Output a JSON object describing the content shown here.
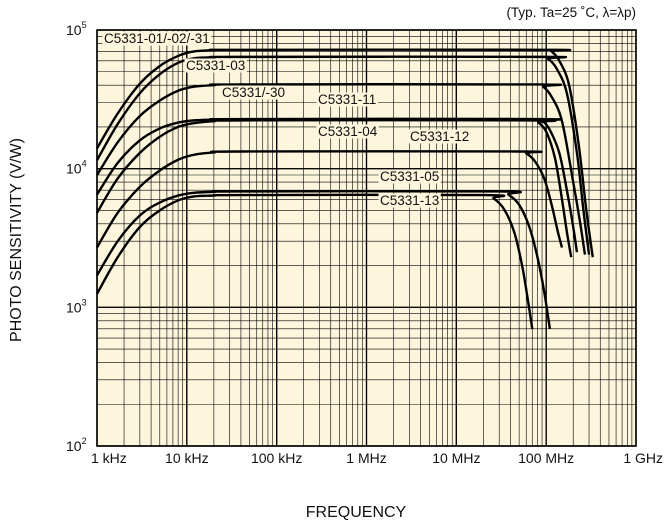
{
  "chart_data": {
    "type": "line",
    "title": "",
    "note": "(Typ. Ta=25 ˚C, λ=λp)",
    "xlabel": "FREQUENCY",
    "ylabel": "PHOTO SENSITIVITY (V/W)",
    "x_scale": "log",
    "y_scale": "log",
    "xlim_hz": [
      1000,
      1000000000
    ],
    "ylim": [
      100,
      100000
    ],
    "x_ticks": [
      {
        "value": 1000,
        "label": "1 kHz"
      },
      {
        "value": 10000,
        "label": "10 kHz"
      },
      {
        "value": 100000,
        "label": "100 kHz"
      },
      {
        "value": 1000000,
        "label": "1 MHz"
      },
      {
        "value": 10000000,
        "label": "10 MHz"
      },
      {
        "value": 100000000,
        "label": "100 MHz"
      },
      {
        "value": 1000000000,
        "label": "1 GHz"
      }
    ],
    "y_ticks": [
      {
        "value": 100,
        "base": "10",
        "exp": "2"
      },
      {
        "value": 1000,
        "base": "10",
        "exp": "3"
      },
      {
        "value": 10000,
        "base": "10",
        "exp": "4"
      },
      {
        "value": 100000,
        "base": "10",
        "exp": "5"
      }
    ],
    "grid": true,
    "legend": "labels on curves",
    "background_color": "#fdf6dd",
    "grid_color": "#000000",
    "line_color": "#000000",
    "series": [
      {
        "name": "C5331-01/-02/-31",
        "points": [
          [
            1000,
            14000
          ],
          [
            1700,
            25000
          ],
          [
            3000,
            41000
          ],
          [
            5000,
            55000
          ],
          [
            8000,
            65000
          ],
          [
            12000,
            70000
          ],
          [
            20000,
            71500
          ],
          [
            40000,
            72000
          ],
          [
            100000000,
            72000
          ],
          [
            115000000,
            70000
          ],
          [
            140000000,
            60000
          ],
          [
            180000000,
            40000
          ],
          [
            230000000,
            15000
          ],
          [
            280000000,
            5000
          ],
          [
            330000000,
            2300
          ]
        ]
      },
      {
        "name": "C5331-03",
        "points": [
          [
            1000,
            11500
          ],
          [
            1700,
            21000
          ],
          [
            3000,
            35000
          ],
          [
            5000,
            48000
          ],
          [
            8000,
            58000
          ],
          [
            12000,
            62500
          ],
          [
            20000,
            63500
          ],
          [
            40000,
            64000
          ],
          [
            90000000,
            64000
          ],
          [
            105000000,
            62000
          ],
          [
            130000000,
            53000
          ],
          [
            170000000,
            35000
          ],
          [
            220000000,
            13000
          ],
          [
            260000000,
            5000
          ],
          [
            300000000,
            2400
          ]
        ]
      },
      {
        "name": "C5331/-30",
        "points": [
          [
            1000,
            9000
          ],
          [
            1700,
            15500
          ],
          [
            3000,
            24000
          ],
          [
            5000,
            31000
          ],
          [
            8000,
            36500
          ],
          [
            12000,
            39000
          ],
          [
            20000,
            40000
          ],
          [
            40000,
            40500
          ],
          [
            80000000,
            40500
          ],
          [
            93000000,
            39000
          ],
          [
            115000000,
            33000
          ],
          [
            150000000,
            22000
          ],
          [
            200000000,
            8000
          ],
          [
            240000000,
            4000
          ],
          [
            270000000,
            2400
          ]
        ]
      },
      {
        "name": "C5331-11",
        "points": [
          [
            1000,
            6500
          ],
          [
            1700,
            11000
          ],
          [
            3000,
            16000
          ],
          [
            5000,
            19500
          ],
          [
            8000,
            21500
          ],
          [
            12000,
            22300
          ],
          [
            20000,
            22600
          ],
          [
            40000,
            22800
          ],
          [
            80000000,
            22800
          ],
          [
            92000000,
            22000
          ],
          [
            110000000,
            19000
          ],
          [
            140000000,
            13000
          ],
          [
            170000000,
            7000
          ],
          [
            200000000,
            3800
          ],
          [
            220000000,
            2500
          ]
        ]
      },
      {
        "name": "C5331-04",
        "points": [
          [
            1000,
            4800
          ],
          [
            1700,
            8500
          ],
          [
            3000,
            13000
          ],
          [
            5000,
            17000
          ],
          [
            8000,
            20000
          ],
          [
            12000,
            21300
          ],
          [
            20000,
            22000
          ],
          [
            40000,
            22300
          ],
          [
            70000000,
            22300
          ],
          [
            82000000,
            21500
          ],
          [
            100000000,
            18500
          ],
          [
            125000000,
            12000
          ],
          [
            150000000,
            6000
          ],
          [
            170000000,
            3500
          ],
          [
            190000000,
            2300
          ]
        ]
      },
      {
        "name": "C5331-12",
        "points": [
          [
            1000,
            2700
          ],
          [
            1700,
            4800
          ],
          [
            3000,
            7400
          ],
          [
            5000,
            9700
          ],
          [
            8000,
            11600
          ],
          [
            12000,
            12600
          ],
          [
            20000,
            13100
          ],
          [
            40000,
            13300
          ],
          [
            50000000,
            13300
          ],
          [
            60000000,
            12900
          ],
          [
            75000000,
            11300
          ],
          [
            95000000,
            8500
          ],
          [
            115000000,
            5500
          ],
          [
            135000000,
            3500
          ],
          [
            150000000,
            2700
          ]
        ]
      },
      {
        "name": "C5331-05",
        "points": [
          [
            1000,
            1700
          ],
          [
            1700,
            3000
          ],
          [
            3000,
            4600
          ],
          [
            5000,
            5700
          ],
          [
            8000,
            6400
          ],
          [
            12000,
            6700
          ],
          [
            20000,
            6800
          ],
          [
            40000,
            6850
          ],
          [
            30000000,
            6850
          ],
          [
            38000000,
            6500
          ],
          [
            50000000,
            5500
          ],
          [
            65000000,
            3800
          ],
          [
            80000000,
            2300
          ],
          [
            95000000,
            1300
          ],
          [
            110000000,
            700
          ]
        ]
      },
      {
        "name": "C5331-13",
        "points": [
          [
            1000,
            1250
          ],
          [
            1700,
            2300
          ],
          [
            3000,
            3800
          ],
          [
            5000,
            5000
          ],
          [
            8000,
            5900
          ],
          [
            12000,
            6300
          ],
          [
            20000,
            6400
          ],
          [
            40000,
            6450
          ],
          [
            20000000,
            6450
          ],
          [
            26000000,
            6100
          ],
          [
            34000000,
            5100
          ],
          [
            44000000,
            3500
          ],
          [
            54000000,
            2000
          ],
          [
            63000000,
            1100
          ],
          [
            70000000,
            700
          ]
        ]
      }
    ]
  }
}
